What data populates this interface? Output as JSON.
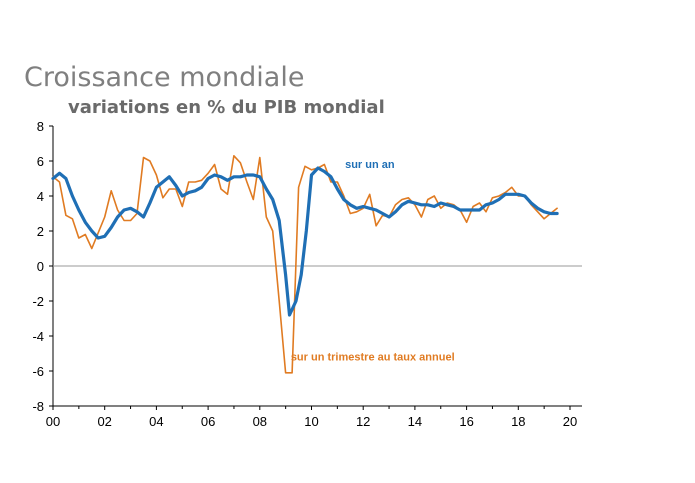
{
  "chart_data": {
    "type": "line",
    "title": "Croissance mondiale",
    "subtitle": "variations en % du PIB mondial",
    "xlabel": "",
    "ylabel": "",
    "xlim": [
      2000,
      2020
    ],
    "ylim": [
      -8,
      8
    ],
    "x_ticks": [
      "00",
      "02",
      "04",
      "06",
      "08",
      "10",
      "12",
      "14",
      "16",
      "18",
      "20"
    ],
    "y_ticks": [
      "8",
      "6",
      "4",
      "2",
      "0",
      "-2",
      "-4",
      "-6",
      "-8"
    ],
    "grid": false,
    "colors": {
      "annual": "#1f6fb5",
      "quarterly": "#e07b22"
    },
    "series": [
      {
        "name": "sur un an",
        "color": "#1f6fb5",
        "points": [
          [
            2000.0,
            5.0
          ],
          [
            2000.25,
            5.3
          ],
          [
            2000.5,
            5.0
          ],
          [
            2000.75,
            4.0
          ],
          [
            2001.0,
            3.2
          ],
          [
            2001.25,
            2.5
          ],
          [
            2001.5,
            2.0
          ],
          [
            2001.75,
            1.6
          ],
          [
            2002.0,
            1.7
          ],
          [
            2002.25,
            2.2
          ],
          [
            2002.5,
            2.8
          ],
          [
            2002.75,
            3.2
          ],
          [
            2003.0,
            3.3
          ],
          [
            2003.25,
            3.1
          ],
          [
            2003.5,
            2.8
          ],
          [
            2003.75,
            3.6
          ],
          [
            2004.0,
            4.5
          ],
          [
            2004.25,
            4.8
          ],
          [
            2004.5,
            5.1
          ],
          [
            2004.75,
            4.6
          ],
          [
            2005.0,
            4.0
          ],
          [
            2005.25,
            4.2
          ],
          [
            2005.5,
            4.3
          ],
          [
            2005.75,
            4.5
          ],
          [
            2006.0,
            5.0
          ],
          [
            2006.25,
            5.2
          ],
          [
            2006.5,
            5.1
          ],
          [
            2006.75,
            4.9
          ],
          [
            2007.0,
            5.1
          ],
          [
            2007.25,
            5.1
          ],
          [
            2007.5,
            5.2
          ],
          [
            2007.75,
            5.2
          ],
          [
            2008.0,
            5.1
          ],
          [
            2008.25,
            4.4
          ],
          [
            2008.5,
            3.8
          ],
          [
            2008.75,
            2.6
          ],
          [
            2009.0,
            -0.5
          ],
          [
            2009.15,
            -2.8
          ],
          [
            2009.4,
            -2.0
          ],
          [
            2009.6,
            -0.5
          ],
          [
            2009.8,
            2.0
          ],
          [
            2010.0,
            5.2
          ],
          [
            2010.25,
            5.6
          ],
          [
            2010.5,
            5.4
          ],
          [
            2010.75,
            5.1
          ],
          [
            2011.0,
            4.4
          ],
          [
            2011.25,
            3.8
          ],
          [
            2011.5,
            3.5
          ],
          [
            2011.75,
            3.3
          ],
          [
            2012.0,
            3.4
          ],
          [
            2012.25,
            3.3
          ],
          [
            2012.5,
            3.2
          ],
          [
            2012.75,
            3.0
          ],
          [
            2013.0,
            2.8
          ],
          [
            2013.25,
            3.1
          ],
          [
            2013.5,
            3.5
          ],
          [
            2013.75,
            3.7
          ],
          [
            2014.0,
            3.6
          ],
          [
            2014.25,
            3.5
          ],
          [
            2014.5,
            3.5
          ],
          [
            2014.75,
            3.4
          ],
          [
            2015.0,
            3.6
          ],
          [
            2015.25,
            3.5
          ],
          [
            2015.5,
            3.4
          ],
          [
            2015.75,
            3.2
          ],
          [
            2016.0,
            3.2
          ],
          [
            2016.25,
            3.2
          ],
          [
            2016.5,
            3.2
          ],
          [
            2016.75,
            3.5
          ],
          [
            2017.0,
            3.6
          ],
          [
            2017.25,
            3.8
          ],
          [
            2017.5,
            4.1
          ],
          [
            2017.75,
            4.1
          ],
          [
            2018.0,
            4.1
          ],
          [
            2018.25,
            4.0
          ],
          [
            2018.5,
            3.6
          ],
          [
            2018.75,
            3.3
          ],
          [
            2019.0,
            3.1
          ],
          [
            2019.25,
            3.0
          ],
          [
            2019.5,
            3.0
          ]
        ]
      },
      {
        "name": "sur un trimestre au taux annuel",
        "color": "#e07b22",
        "points": [
          [
            2000.0,
            5.1
          ],
          [
            2000.25,
            4.8
          ],
          [
            2000.5,
            2.9
          ],
          [
            2000.75,
            2.7
          ],
          [
            2001.0,
            1.6
          ],
          [
            2001.25,
            1.8
          ],
          [
            2001.5,
            1.0
          ],
          [
            2001.75,
            1.9
          ],
          [
            2002.0,
            2.8
          ],
          [
            2002.25,
            4.3
          ],
          [
            2002.5,
            3.2
          ],
          [
            2002.75,
            2.6
          ],
          [
            2003.0,
            2.6
          ],
          [
            2003.25,
            3.0
          ],
          [
            2003.5,
            6.2
          ],
          [
            2003.75,
            6.0
          ],
          [
            2004.0,
            5.2
          ],
          [
            2004.25,
            3.9
          ],
          [
            2004.5,
            4.4
          ],
          [
            2004.75,
            4.4
          ],
          [
            2005.0,
            3.4
          ],
          [
            2005.25,
            4.8
          ],
          [
            2005.5,
            4.8
          ],
          [
            2005.75,
            4.9
          ],
          [
            2006.0,
            5.3
          ],
          [
            2006.25,
            5.8
          ],
          [
            2006.5,
            4.4
          ],
          [
            2006.75,
            4.1
          ],
          [
            2007.0,
            6.3
          ],
          [
            2007.25,
            5.9
          ],
          [
            2007.5,
            4.8
          ],
          [
            2007.75,
            3.8
          ],
          [
            2008.0,
            6.2
          ],
          [
            2008.25,
            2.8
          ],
          [
            2008.5,
            2.0
          ],
          [
            2008.75,
            -2.0
          ],
          [
            2009.0,
            -6.1
          ],
          [
            2009.25,
            -6.1
          ],
          [
            2009.5,
            4.5
          ],
          [
            2009.75,
            5.7
          ],
          [
            2010.0,
            5.5
          ],
          [
            2010.25,
            5.6
          ],
          [
            2010.5,
            5.8
          ],
          [
            2010.75,
            4.8
          ],
          [
            2011.0,
            4.8
          ],
          [
            2011.25,
            4.0
          ],
          [
            2011.5,
            3.0
          ],
          [
            2011.75,
            3.1
          ],
          [
            2012.0,
            3.3
          ],
          [
            2012.25,
            4.1
          ],
          [
            2012.5,
            2.3
          ],
          [
            2012.75,
            2.9
          ],
          [
            2013.0,
            2.8
          ],
          [
            2013.25,
            3.5
          ],
          [
            2013.5,
            3.8
          ],
          [
            2013.75,
            3.9
          ],
          [
            2014.0,
            3.5
          ],
          [
            2014.25,
            2.8
          ],
          [
            2014.5,
            3.8
          ],
          [
            2014.75,
            4.0
          ],
          [
            2015.0,
            3.3
          ],
          [
            2015.25,
            3.6
          ],
          [
            2015.5,
            3.5
          ],
          [
            2015.75,
            3.2
          ],
          [
            2016.0,
            2.5
          ],
          [
            2016.25,
            3.4
          ],
          [
            2016.5,
            3.6
          ],
          [
            2016.75,
            3.1
          ],
          [
            2017.0,
            3.9
          ],
          [
            2017.25,
            4.0
          ],
          [
            2017.5,
            4.2
          ],
          [
            2017.75,
            4.5
          ],
          [
            2018.0,
            4.0
          ],
          [
            2018.25,
            4.0
          ],
          [
            2018.5,
            3.5
          ],
          [
            2018.75,
            3.1
          ],
          [
            2019.0,
            2.7
          ],
          [
            2019.25,
            3.0
          ],
          [
            2019.5,
            3.3
          ]
        ]
      }
    ],
    "annotations": [
      {
        "text": "sur un an",
        "series": "annual",
        "x": 2011.3,
        "y": 5.6
      },
      {
        "text": "sur un trimestre au taux annuel",
        "series": "quarterly",
        "x": 2009.2,
        "y": -5.4
      }
    ]
  }
}
